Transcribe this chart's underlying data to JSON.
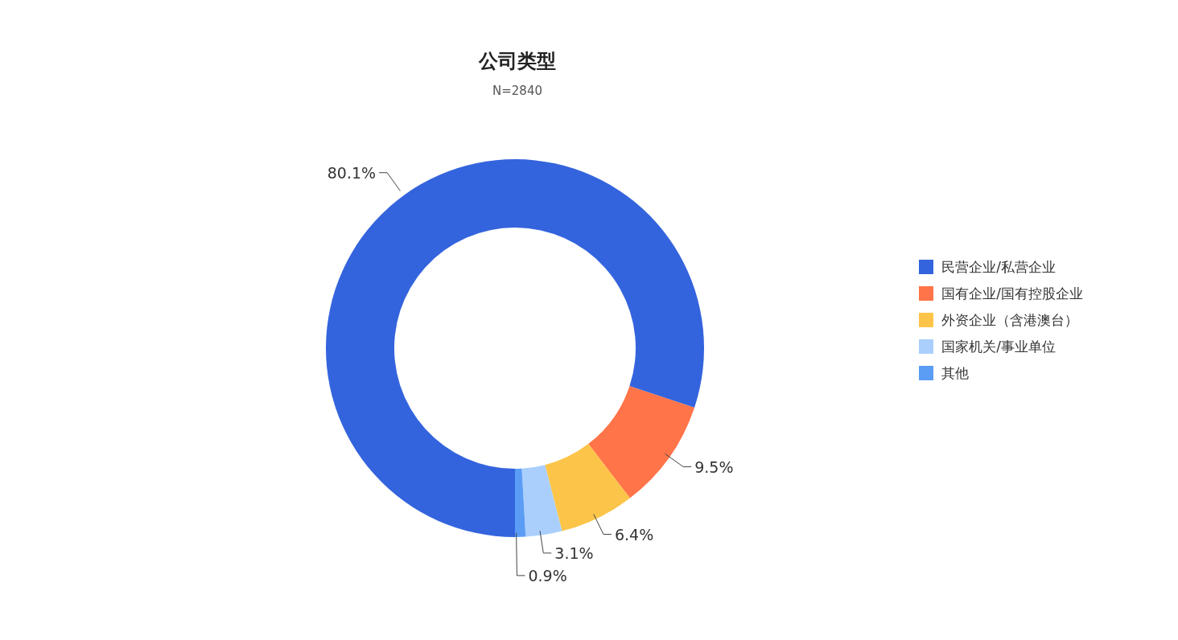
{
  "chart_data": {
    "type": "donut",
    "title": "公司类型",
    "subtitle": "N=2840",
    "categories": [
      "民营企业/私营企业",
      "国有企业/国有控股企业",
      "外资企业（含港澳台）",
      "国家机关/事业单位",
      "其他"
    ],
    "values": [
      80.1,
      9.5,
      6.4,
      3.1,
      0.9
    ],
    "colors": [
      "#3464dd",
      "#ff7448",
      "#fcc549",
      "#aacffc",
      "#5b9cf5"
    ],
    "value_labels": [
      "80.1%",
      "9.5%",
      "6.4%",
      "3.1%",
      "0.9%"
    ],
    "legend": "right"
  }
}
